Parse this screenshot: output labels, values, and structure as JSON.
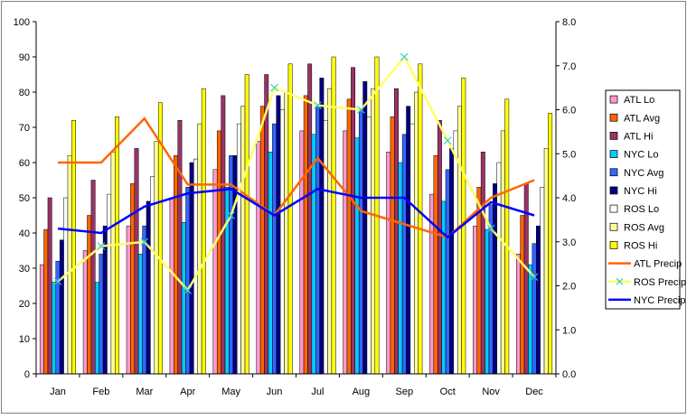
{
  "chart_data": {
    "type": "bar",
    "categories": [
      "Jan",
      "Feb",
      "Mar",
      "Apr",
      "May",
      "Jun",
      "Jul",
      "Aug",
      "Sep",
      "Oct",
      "Nov",
      "Dec"
    ],
    "ylim": [
      0,
      100
    ],
    "y2lim": [
      0,
      8
    ],
    "yticks": [
      "0",
      "10",
      "20",
      "30",
      "40",
      "50",
      "60",
      "70",
      "80",
      "90",
      "100"
    ],
    "y2ticks": [
      "0.0",
      "1.0",
      "2.0",
      "3.0",
      "4.0",
      "5.0",
      "6.0",
      "7.0",
      "8.0"
    ],
    "grid": false,
    "legend_position": "right",
    "plot_background": "#ffffff",
    "bar_series": [
      {
        "name": "ATL Lo",
        "color": "#ff99cc",
        "values": [
          31,
          35,
          42,
          50,
          58,
          66,
          69,
          69,
          63,
          51,
          42,
          34
        ]
      },
      {
        "name": "ATL Avg",
        "color": "#ff6600",
        "values": [
          41,
          45,
          54,
          62,
          69,
          76,
          79,
          78,
          73,
          62,
          53,
          45
        ]
      },
      {
        "name": "ATL Hi",
        "color": "#993366",
        "values": [
          50,
          55,
          64,
          72,
          79,
          85,
          88,
          87,
          81,
          72,
          63,
          54
        ]
      },
      {
        "name": "NYC Lo",
        "color": "#00ccff",
        "values": [
          26,
          26,
          34,
          43,
          53,
          63,
          68,
          67,
          60,
          49,
          41,
          31
        ]
      },
      {
        "name": "NYC Avg",
        "color": "#3366ff",
        "values": [
          32,
          34,
          42,
          53,
          62,
          71,
          76,
          75,
          68,
          58,
          48,
          37
        ]
      },
      {
        "name": "NYC Hi",
        "color": "#000080",
        "values": [
          38,
          42,
          49,
          60,
          62,
          79,
          84,
          83,
          76,
          64,
          54,
          42
        ]
      },
      {
        "name": "ROS Lo",
        "color": "#ffffff",
        "values": [
          50,
          51,
          56,
          61,
          71,
          75,
          72,
          73,
          71,
          69,
          60,
          53
        ]
      },
      {
        "name": "ROS Avg",
        "color": "#ffff99",
        "values": [
          62,
          63,
          66,
          71,
          76,
          80,
          81,
          81,
          80,
          76,
          69,
          64
        ]
      },
      {
        "name": "ROS Hi",
        "color": "#ffff00",
        "values": [
          72,
          73,
          77,
          81,
          85,
          88,
          90,
          90,
          88,
          84,
          78,
          74
        ]
      }
    ],
    "line_series": [
      {
        "name": "ATL Precip",
        "color": "#ff6600",
        "marker": "none",
        "values": [
          4.8,
          4.8,
          5.8,
          4.3,
          4.3,
          3.6,
          4.9,
          3.7,
          3.4,
          3.1,
          4.0,
          4.4
        ]
      },
      {
        "name": "ROS Precip",
        "color": "#ffff66",
        "marker": "x",
        "values": [
          2.1,
          2.9,
          3.0,
          1.9,
          3.6,
          6.5,
          6.1,
          6.0,
          7.2,
          5.3,
          3.3,
          2.2
        ]
      },
      {
        "name": "NYC Precip",
        "color": "#0000ff",
        "marker": "none",
        "values": [
          3.3,
          3.2,
          3.8,
          4.1,
          4.2,
          3.6,
          4.2,
          4.0,
          4.0,
          3.1,
          3.9,
          3.6
        ]
      }
    ]
  }
}
